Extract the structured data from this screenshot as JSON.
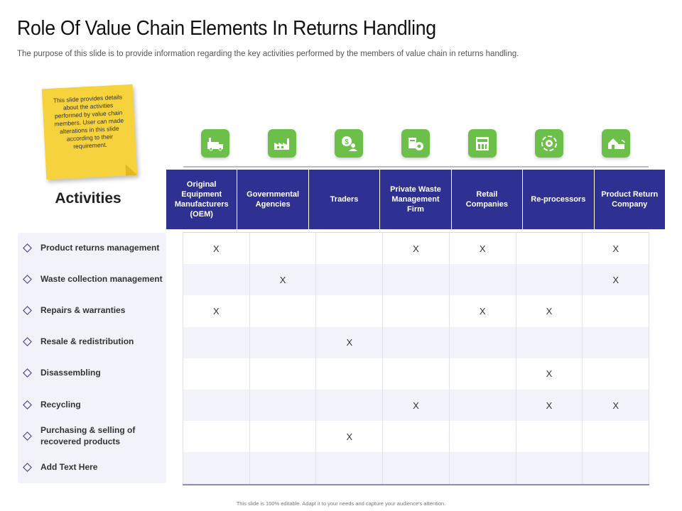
{
  "title": "Role Of Value Chain Elements In Returns Handling",
  "subtitle": "The purpose of this slide is to provide information regarding the key activities performed by the members  of value chain in returns handling.",
  "note": "This slide provides details about the activities performed by value chain members. User can made alterations in this slide according to their requirement.",
  "activities_heading": "Activities",
  "accent_colors": {
    "header": "#2e3192",
    "icon": "#6cc04a",
    "note": "#f6d33c"
  },
  "icons": [
    "factory-truck-icon",
    "factory-icon",
    "trader-dollar-icon",
    "waste-management-icon",
    "retail-store-icon",
    "recycle-gear-icon",
    "return-truck-icon"
  ],
  "columns": [
    "Original Equipment Manufacturers (OEM)",
    "Governmental Agencies",
    "Traders",
    "Private Waste Management Firm",
    "Retail Companies",
    "Re-processors",
    "Product Return Company"
  ],
  "rows": [
    {
      "label": "Product returns management",
      "marks": [
        "X",
        "",
        "",
        "X",
        "X",
        "",
        "X"
      ]
    },
    {
      "label": "Waste collection management",
      "marks": [
        "",
        "X",
        "",
        "",
        "",
        "",
        "X"
      ]
    },
    {
      "label": "Repairs & warranties",
      "marks": [
        "X",
        "",
        "",
        "",
        "X",
        "X",
        ""
      ]
    },
    {
      "label": "Resale & redistribution",
      "marks": [
        "",
        "",
        "X",
        "",
        "",
        "",
        ""
      ]
    },
    {
      "label": "Disassembling",
      "marks": [
        "",
        "",
        "",
        "",
        "",
        "X",
        ""
      ]
    },
    {
      "label": "Recycling",
      "marks": [
        "",
        "",
        "",
        "X",
        "",
        "X",
        "X"
      ]
    },
    {
      "label": "Purchasing & selling of recovered products",
      "marks": [
        "",
        "",
        "X",
        "",
        "",
        "",
        ""
      ]
    },
    {
      "label": "Add Text Here",
      "marks": [
        "",
        "",
        "",
        "",
        "",
        "",
        ""
      ]
    }
  ],
  "footer": "This slide is 100% editable. Adapt it to your needs and capture your audience's attention."
}
